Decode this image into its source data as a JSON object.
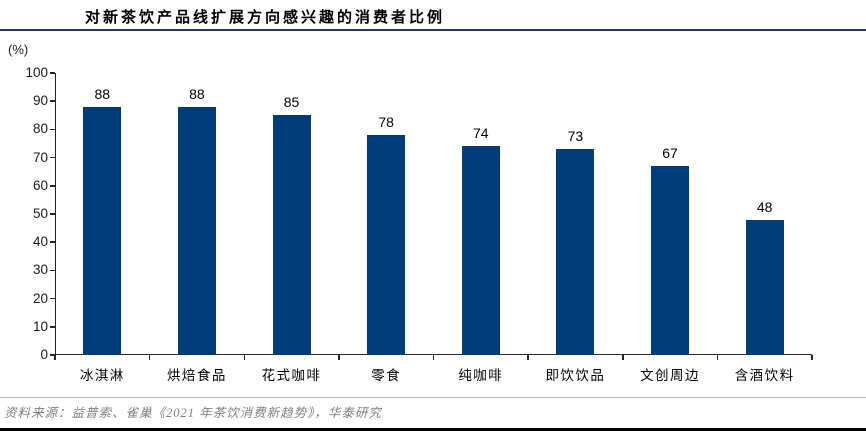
{
  "chart_data": {
    "type": "bar",
    "title": "对新茶饮产品线扩展方向感兴趣的消费者比例",
    "unit_label": "(%)",
    "categories": [
      "冰淇淋",
      "烘焙食品",
      "花式咖啡",
      "零食",
      "纯咖啡",
      "即饮饮品",
      "文创周边",
      "含酒饮料"
    ],
    "values": [
      88,
      88,
      85,
      78,
      74,
      73,
      67,
      48
    ],
    "ylim": [
      0,
      100
    ],
    "yticks": [
      0,
      10,
      20,
      30,
      40,
      50,
      60,
      70,
      80,
      90,
      100
    ],
    "grid": false,
    "legend": "none",
    "data_labels": true,
    "bar_color": "#003B7A",
    "axis_color": "#262626",
    "title_rule_color": "#1F3864",
    "divider_color": "#A9B8D3",
    "source": "资料来源：益普索、雀巢《2021 年茶饮消费新趋势》，华泰研究",
    "source_color": "#7F7F7F"
  }
}
